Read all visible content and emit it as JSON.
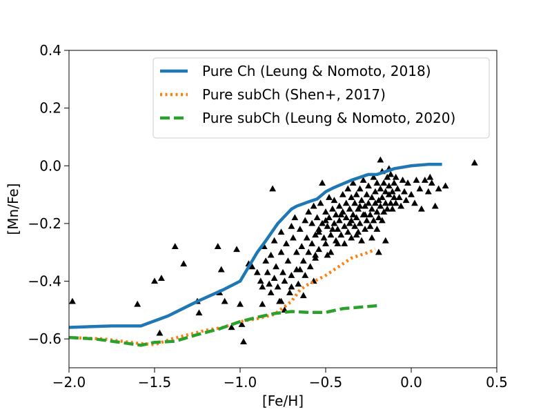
{
  "chart_data": {
    "type": "scatter",
    "title": "",
    "xlabel": "[Fe/H]",
    "ylabel": "[Mn/Fe]",
    "xlim": [
      -2.0,
      0.5
    ],
    "ylim": [
      -0.7,
      0.4
    ],
    "xticks": [
      -2.0,
      -1.5,
      -1.0,
      -0.5,
      0.0,
      0.5
    ],
    "xtick_labels": [
      "−2.0",
      "−1.5",
      "−1.0",
      "−0.5",
      "0.0",
      "0.5"
    ],
    "yticks": [
      -0.6,
      -0.4,
      -0.2,
      0.0,
      0.2,
      0.4
    ],
    "ytick_labels": [
      "−0.6",
      "−0.4",
      "−0.2",
      "0.0",
      "0.2",
      "0.4"
    ],
    "legend_position": "top-right",
    "series": [
      {
        "name": "Pure Ch (Leung & Nomoto, 2018)",
        "kind": "line",
        "style": "solid",
        "color": "#1f77b4",
        "x": [
          -2.0,
          -1.75,
          -1.58,
          -1.42,
          -1.25,
          -1.1,
          -1.0,
          -0.95,
          -0.9,
          -0.85,
          -0.78,
          -0.7,
          -0.67,
          -0.6,
          -0.55,
          -0.5,
          -0.45,
          -0.35,
          -0.25,
          -0.2,
          -0.1,
          0.0,
          0.1,
          0.18
        ],
        "y": [
          -0.56,
          -0.555,
          -0.555,
          -0.52,
          -0.47,
          -0.43,
          -0.4,
          -0.35,
          -0.3,
          -0.26,
          -0.2,
          -0.15,
          -0.14,
          -0.125,
          -0.115,
          -0.09,
          -0.075,
          -0.05,
          -0.03,
          -0.03,
          -0.01,
          0.0,
          0.005,
          0.005
        ]
      },
      {
        "name": "Pure subCh (Shen+, 2017)",
        "kind": "line",
        "style": "dotted",
        "color": "#ff7f0e",
        "x": [
          -2.0,
          -1.8,
          -1.6,
          -1.5,
          -1.4,
          -1.3,
          -1.2,
          -1.1,
          -1.0,
          -0.9,
          -0.8,
          -0.7,
          -0.65,
          -0.6,
          -0.5,
          -0.45,
          -0.4,
          -0.35,
          -0.3,
          -0.25,
          -0.21
        ],
        "y": [
          -0.595,
          -0.6,
          -0.615,
          -0.62,
          -0.6,
          -0.585,
          -0.57,
          -0.56,
          -0.54,
          -0.53,
          -0.515,
          -0.47,
          -0.43,
          -0.41,
          -0.38,
          -0.36,
          -0.34,
          -0.32,
          -0.31,
          -0.3,
          -0.29
        ]
      },
      {
        "name": "Pure subCh (Leung & Nomoto, 2020)",
        "kind": "line",
        "style": "dashed",
        "color": "#2ca02c",
        "x": [
          -2.0,
          -1.85,
          -1.7,
          -1.58,
          -1.5,
          -1.38,
          -1.25,
          -1.12,
          -1.0,
          -0.9,
          -0.8,
          -0.7,
          -0.6,
          -0.5,
          -0.4,
          -0.3,
          -0.2
        ],
        "y": [
          -0.595,
          -0.6,
          -0.612,
          -0.622,
          -0.612,
          -0.608,
          -0.585,
          -0.565,
          -0.54,
          -0.525,
          -0.512,
          -0.505,
          -0.508,
          -0.508,
          -0.495,
          -0.49,
          -0.485
        ]
      },
      {
        "name": "Stars",
        "kind": "scatter",
        "marker": "triangle",
        "color": "#000000",
        "in_legend": false,
        "points": [
          [
            -1.98,
            -0.47
          ],
          [
            -1.6,
            -0.48
          ],
          [
            -1.5,
            -0.4
          ],
          [
            -1.46,
            -0.39
          ],
          [
            -1.47,
            -0.58
          ],
          [
            -1.38,
            -0.28
          ],
          [
            -1.33,
            -0.34
          ],
          [
            -1.25,
            -0.47
          ],
          [
            -1.24,
            -0.51
          ],
          [
            -1.13,
            -0.28
          ],
          [
            -1.11,
            -0.36
          ],
          [
            -1.12,
            -0.44
          ],
          [
            -1.09,
            -0.47
          ],
          [
            -1.05,
            -0.56
          ],
          [
            -1.02,
            -0.29
          ],
          [
            -1.0,
            -0.48
          ],
          [
            -0.99,
            -0.55
          ],
          [
            -0.98,
            -0.61
          ],
          [
            -0.95,
            -0.34
          ],
          [
            -0.93,
            -0.35
          ],
          [
            -0.9,
            -0.37
          ],
          [
            -0.88,
            -0.4
          ],
          [
            -0.87,
            -0.42
          ],
          [
            -0.87,
            -0.48
          ],
          [
            -0.86,
            -0.28
          ],
          [
            -0.85,
            -0.33
          ],
          [
            -0.84,
            -0.37
          ],
          [
            -0.83,
            -0.41
          ],
          [
            -0.82,
            -0.44
          ],
          [
            -0.82,
            -0.31
          ],
          [
            -0.81,
            -0.08
          ],
          [
            -0.8,
            -0.26
          ],
          [
            -0.8,
            -0.39
          ],
          [
            -0.79,
            -0.35
          ],
          [
            -0.78,
            -0.42
          ],
          [
            -0.77,
            -0.47
          ],
          [
            -0.76,
            -0.23
          ],
          [
            -0.76,
            -0.3
          ],
          [
            -0.75,
            -0.37
          ],
          [
            -0.74,
            -0.4
          ],
          [
            -0.74,
            -0.5
          ],
          [
            -0.73,
            -0.27
          ],
          [
            -0.72,
            -0.33
          ],
          [
            -0.71,
            -0.44
          ],
          [
            -0.7,
            -0.21
          ],
          [
            -0.7,
            -0.38
          ],
          [
            -0.69,
            -0.25
          ],
          [
            -0.68,
            -0.18
          ],
          [
            -0.67,
            -0.3
          ],
          [
            -0.67,
            -0.36
          ],
          [
            -0.66,
            -0.41
          ],
          [
            -0.65,
            -0.22
          ],
          [
            -0.64,
            -0.28
          ],
          [
            -0.63,
            -0.33
          ],
          [
            -0.62,
            -0.19
          ],
          [
            -0.62,
            -0.38
          ],
          [
            -0.61,
            -0.25
          ],
          [
            -0.6,
            -0.16
          ],
          [
            -0.6,
            -0.3
          ],
          [
            -0.59,
            -0.35
          ],
          [
            -0.58,
            -0.2
          ],
          [
            -0.58,
            -0.27
          ],
          [
            -0.57,
            -0.14
          ],
          [
            -0.56,
            -0.24
          ],
          [
            -0.56,
            -0.32
          ],
          [
            -0.55,
            -0.18
          ],
          [
            -0.54,
            -0.22
          ],
          [
            -0.54,
            -0.29
          ],
          [
            -0.53,
            -0.13
          ],
          [
            -0.52,
            -0.06
          ],
          [
            -0.52,
            -0.2
          ],
          [
            -0.51,
            -0.25
          ],
          [
            -0.5,
            -0.16
          ],
          [
            -0.5,
            -0.27
          ],
          [
            -0.49,
            -0.21
          ],
          [
            -0.48,
            -0.11
          ],
          [
            -0.48,
            -0.18
          ],
          [
            -0.47,
            -0.24
          ],
          [
            -0.47,
            -0.3
          ],
          [
            -0.46,
            -0.15
          ],
          [
            -0.45,
            -0.2
          ],
          [
            -0.45,
            -0.12
          ],
          [
            -0.44,
            -0.26
          ],
          [
            -0.44,
            -0.17
          ],
          [
            -0.43,
            -0.22
          ],
          [
            -0.42,
            -0.14
          ],
          [
            -0.42,
            -0.19
          ],
          [
            -0.41,
            -0.24
          ],
          [
            -0.4,
            -0.1
          ],
          [
            -0.4,
            -0.16
          ],
          [
            -0.39,
            -0.21
          ],
          [
            -0.39,
            -0.27
          ],
          [
            -0.38,
            -0.13
          ],
          [
            -0.38,
            -0.18
          ],
          [
            -0.37,
            -0.08
          ],
          [
            -0.37,
            -0.23
          ],
          [
            -0.36,
            -0.15
          ],
          [
            -0.36,
            -0.2
          ],
          [
            -0.35,
            -0.11
          ],
          [
            -0.35,
            -0.25
          ],
          [
            -0.34,
            -0.17
          ],
          [
            -0.34,
            -0.06
          ],
          [
            -0.33,
            -0.21
          ],
          [
            -0.33,
            -0.13
          ],
          [
            -0.32,
            -0.18
          ],
          [
            -0.32,
            -0.1
          ],
          [
            -0.31,
            -0.23
          ],
          [
            -0.31,
            -0.15
          ],
          [
            -0.3,
            -0.2
          ],
          [
            -0.3,
            -0.08
          ],
          [
            -0.29,
            -0.12
          ],
          [
            -0.29,
            -0.26
          ],
          [
            -0.28,
            -0.17
          ],
          [
            -0.28,
            -0.05
          ],
          [
            -0.27,
            -0.14
          ],
          [
            -0.27,
            -0.22
          ],
          [
            -0.26,
            -0.1
          ],
          [
            -0.26,
            -0.19
          ],
          [
            -0.25,
            -0.13
          ],
          [
            -0.25,
            -0.07
          ],
          [
            -0.24,
            -0.17
          ],
          [
            -0.24,
            -0.21
          ],
          [
            -0.23,
            -0.11
          ],
          [
            -0.23,
            -0.15
          ],
          [
            -0.22,
            -0.04
          ],
          [
            -0.22,
            -0.19
          ],
          [
            -0.21,
            -0.13
          ],
          [
            -0.21,
            -0.09
          ],
          [
            -0.2,
            -0.16
          ],
          [
            -0.2,
            -0.06
          ],
          [
            -0.19,
            -0.12
          ],
          [
            -0.19,
            -0.18
          ],
          [
            -0.18,
            -0.08
          ],
          [
            -0.18,
            -0.14
          ],
          [
            -0.17,
            -0.02
          ],
          [
            -0.17,
            -0.11
          ],
          [
            -0.16,
            -0.16
          ],
          [
            -0.16,
            -0.06
          ],
          [
            -0.15,
            -0.13
          ],
          [
            -0.15,
            -0.09
          ],
          [
            -0.14,
            -0.04
          ],
          [
            -0.14,
            -0.15
          ],
          [
            -0.13,
            -0.1
          ],
          [
            -0.13,
            -0.07
          ],
          [
            -0.12,
            -0.13
          ],
          [
            -0.12,
            -0.03
          ],
          [
            -0.11,
            -0.09
          ],
          [
            -0.11,
            -0.15
          ],
          [
            -0.1,
            -0.06
          ],
          [
            -0.1,
            -0.11
          ],
          [
            -0.09,
            -0.13
          ],
          [
            -0.09,
            -0.04
          ],
          [
            -0.08,
            -0.08
          ],
          [
            -0.07,
            -0.11
          ],
          [
            -0.06,
            -0.14
          ],
          [
            -0.05,
            -0.05
          ],
          [
            -0.04,
            -0.09
          ],
          [
            -0.03,
            -0.12
          ],
          [
            -0.02,
            -0.06
          ],
          [
            0.0,
            -0.1
          ],
          [
            0.02,
            -0.13
          ],
          [
            0.03,
            -0.05
          ],
          [
            0.05,
            -0.08
          ],
          [
            0.06,
            -0.15
          ],
          [
            0.08,
            -0.05
          ],
          [
            0.1,
            -0.09
          ],
          [
            0.11,
            -0.04
          ],
          [
            0.12,
            -0.06
          ],
          [
            0.14,
            -0.14
          ],
          [
            0.16,
            -0.08
          ],
          [
            0.2,
            -0.07
          ],
          [
            0.37,
            0.01
          ],
          [
            -0.18,
            0.02
          ],
          [
            -0.13,
            -0.01
          ],
          [
            -0.54,
            -0.23
          ],
          [
            -0.5,
            -0.19
          ],
          [
            -0.46,
            -0.22
          ],
          [
            -0.43,
            -0.27
          ],
          [
            -0.41,
            -0.17
          ],
          [
            -0.35,
            -0.19
          ],
          [
            -0.32,
            -0.24
          ],
          [
            -0.3,
            -0.14
          ],
          [
            -0.27,
            -0.17
          ],
          [
            -0.23,
            -0.25
          ],
          [
            -0.2,
            -0.22
          ],
          [
            -0.17,
            -0.19
          ],
          [
            -0.19,
            -0.3
          ],
          [
            -0.15,
            -0.26
          ],
          [
            -0.57,
            -0.4
          ],
          [
            -0.63,
            -0.45
          ],
          [
            -0.7,
            -0.42
          ],
          [
            -0.76,
            -0.47
          ],
          [
            -0.65,
            -0.36
          ],
          [
            -0.56,
            -0.31
          ],
          [
            -0.49,
            -0.31
          ]
        ]
      }
    ]
  }
}
